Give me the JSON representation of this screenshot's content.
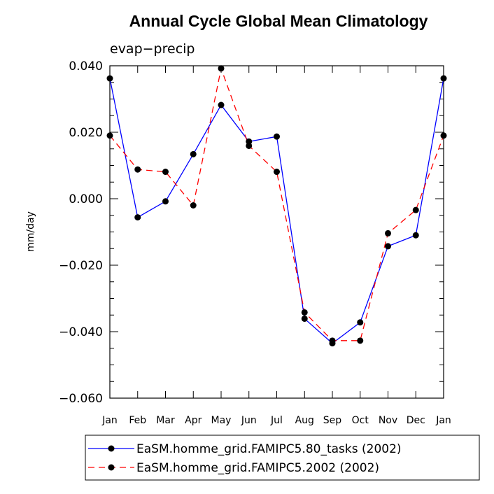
{
  "chart_data": {
    "type": "line",
    "title": "Annual Cycle Global Mean Climatology",
    "subtitle": "evap−precip",
    "xlabel": "",
    "ylabel": "mm/day",
    "categories": [
      "Jan",
      "Feb",
      "Mar",
      "Apr",
      "May",
      "Jun",
      "Jul",
      "Aug",
      "Sep",
      "Oct",
      "Nov",
      "Dec",
      "Jan"
    ],
    "ylim": [
      -0.06,
      0.04
    ],
    "yticks": [
      0.04,
      0.02,
      0.0,
      -0.02,
      -0.04,
      -0.06
    ],
    "ytick_labels": [
      "0.040",
      "0.020",
      "0.000",
      "−0.020",
      "−0.040",
      "−0.060"
    ],
    "series": [
      {
        "name": "EaSM.homme_grid.FAMIPC5.80_tasks (2002)",
        "color": "#0000ff",
        "dash": "solid",
        "values": [
          0.0362,
          -0.0056,
          -0.0008,
          0.0134,
          0.0282,
          0.0172,
          0.0187,
          -0.0361,
          -0.0435,
          -0.0372,
          -0.0143,
          -0.011,
          0.0362
        ]
      },
      {
        "name": "EaSM.homme_grid.FAMIPC5.2002 (2002)",
        "color": "#ff0000",
        "dash": "dashed",
        "values": [
          0.019,
          0.0088,
          0.0081,
          -0.002,
          0.0392,
          0.0159,
          0.0081,
          -0.0342,
          -0.0427,
          -0.0427,
          -0.0104,
          -0.0034,
          0.019
        ]
      }
    ],
    "marker_color": "#000000",
    "legend_position": "bottom"
  }
}
